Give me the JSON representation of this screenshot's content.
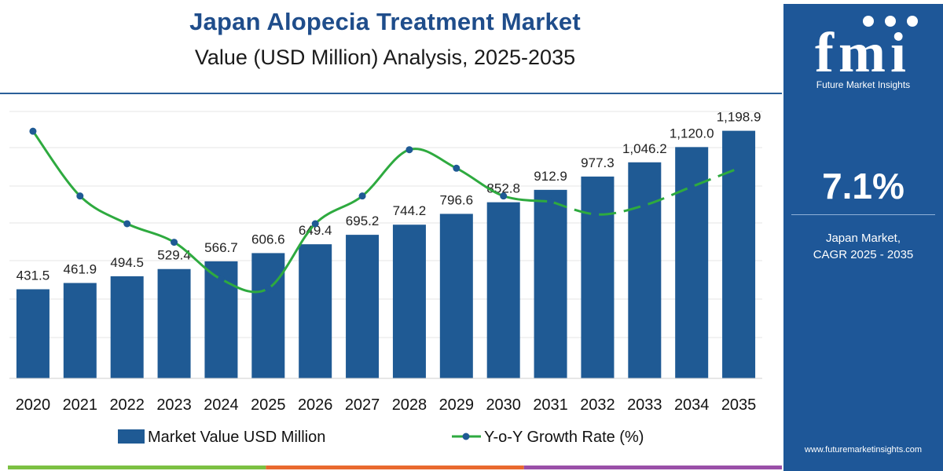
{
  "header": {
    "title": "Japan Alopecia Treatment Market",
    "subtitle": "Value (USD Million) Analysis, 2025-2035"
  },
  "sidebar": {
    "logo_text": "fmi",
    "logo_subtitle": "Future Market Insights",
    "cagr_value": "7.1%",
    "cagr_label_line1": "Japan Market,",
    "cagr_label_line2": "CAGR 2025 - 2035",
    "website": "www.futuremarketinsights.com"
  },
  "colors": {
    "bar": "#1f5a94",
    "line": "#2eaa3f",
    "marker": "#1f5a94",
    "sidebar_bg": "#1e5798",
    "title": "#1f4d8b",
    "stripe": [
      "#7cc142",
      "#e96a2f",
      "#9a4fa8"
    ]
  },
  "chart_data": {
    "type": "bar",
    "categories": [
      "2020",
      "2021",
      "2022",
      "2023",
      "2024",
      "2025",
      "2026",
      "2027",
      "2028",
      "2029",
      "2030",
      "2031",
      "2032",
      "2033",
      "2034",
      "2035"
    ],
    "series": [
      {
        "name": "Market Value USD Million",
        "type": "bar",
        "values": [
          431.5,
          461.9,
          494.5,
          529.4,
          566.7,
          606.6,
          649.4,
          695.2,
          744.2,
          796.6,
          852.8,
          912.9,
          977.3,
          1046.2,
          1120.0,
          1198.9
        ],
        "labels": [
          "431.5",
          "461.9",
          "494.5",
          "529.4",
          "566.7",
          "606.6",
          "649.4",
          "695.2",
          "744.2",
          "796.6",
          "852.8",
          "912.9",
          "977.3",
          "1,046.2",
          "1,120.0",
          "1,198.9"
        ]
      },
      {
        "name": "Y-o-Y Growth Rate (%)",
        "type": "line",
        "values": [
          7.4,
          7.05,
          6.9,
          6.8,
          6.6,
          6.55,
          6.9,
          7.05,
          7.3,
          7.2,
          7.05,
          7.02,
          6.95,
          7.0,
          7.1,
          7.2
        ],
        "dashed_from_index": 11
      }
    ],
    "ylim": [
      0,
      1300
    ],
    "y2lim": [
      6.2,
      7.6
    ],
    "grid": true,
    "legend": "bottom"
  }
}
